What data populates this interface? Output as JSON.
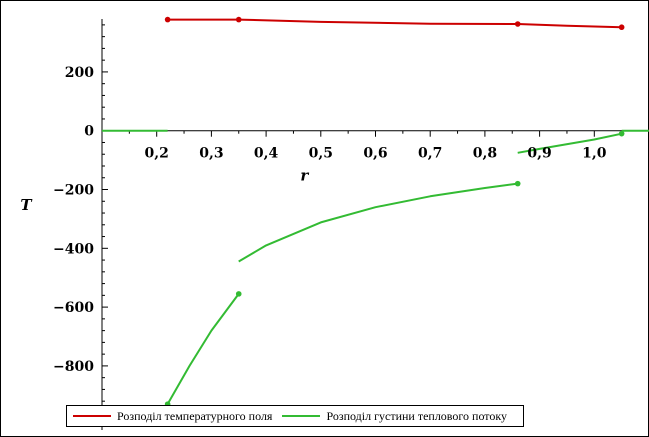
{
  "chart_data": {
    "type": "line",
    "xlabel": "r",
    "ylabel": "T",
    "xlim": [
      0.1,
      1.1
    ],
    "ylim": [
      -950,
      380
    ],
    "x_ticks": [
      "0,2",
      "0,3",
      "0,4",
      "0,5",
      "0,6",
      "0,7",
      "0,8",
      "0,9",
      "1,0"
    ],
    "y_ticks": [
      "200",
      "0",
      "−200",
      "−400",
      "−600",
      "−800"
    ],
    "grid": false,
    "legend_position": "bottom-left",
    "series": [
      {
        "name": "Розподіл температурного поля",
        "color": "#cc0000",
        "segments": [
          [
            [
              0.22,
              378
            ],
            [
              0.35,
              378
            ],
            [
              0.5,
              370
            ],
            [
              0.7,
              364
            ],
            [
              0.86,
              363
            ]
          ],
          [
            [
              0.86,
              363
            ],
            [
              0.95,
              357
            ],
            [
              1.05,
              352
            ]
          ]
        ],
        "markers": [
          [
            0.22,
            378
          ],
          [
            0.35,
            378
          ],
          [
            0.86,
            363
          ],
          [
            1.05,
            352
          ]
        ]
      },
      {
        "name": "Розподіл густини теплового потоку",
        "color": "#33bb33",
        "segments": [
          [
            [
              0.1,
              0
            ],
            [
              0.22,
              0
            ]
          ],
          [
            [
              0.22,
              -930
            ],
            [
              0.26,
              -800
            ],
            [
              0.3,
              -680
            ],
            [
              0.35,
              -555
            ]
          ],
          [
            [
              0.35,
              -445
            ],
            [
              0.4,
              -390
            ],
            [
              0.5,
              -312
            ],
            [
              0.6,
              -260
            ],
            [
              0.7,
              -223
            ],
            [
              0.8,
              -195
            ],
            [
              0.86,
              -180
            ]
          ],
          [
            [
              0.86,
              -75
            ],
            [
              0.9,
              -62
            ],
            [
              1.0,
              -30
            ],
            [
              1.05,
              -10
            ]
          ],
          [
            [
              1.05,
              0
            ],
            [
              1.1,
              0
            ]
          ]
        ],
        "markers": [
          [
            0.22,
            -930
          ],
          [
            0.35,
            -555
          ],
          [
            0.86,
            -180
          ],
          [
            1.05,
            -10
          ]
        ]
      }
    ]
  }
}
